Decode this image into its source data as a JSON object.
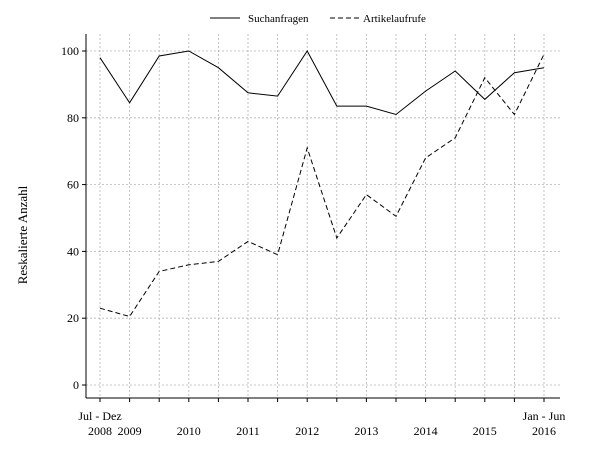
{
  "chart_data": {
    "type": "line",
    "ylabel": "Reskalierte Anzahl",
    "xlabel": "",
    "ylim": [
      0,
      100
    ],
    "yticks": [
      0,
      20,
      40,
      60,
      80,
      100
    ],
    "grid": true,
    "legend_position": "top",
    "x": [
      "2008-H2",
      "2009-H1",
      "2009-H2",
      "2010-H1",
      "2010-H2",
      "2011-H1",
      "2011-H2",
      "2012-H1",
      "2012-H2",
      "2013-H1",
      "2013-H2",
      "2014-H1",
      "2014-H2",
      "2015-H1",
      "2015-H2",
      "2016-H1"
    ],
    "x_tick_labels": [
      {
        "at": "2008-H2",
        "lines": [
          "Jul - Dez",
          "2008"
        ]
      },
      {
        "at": "2009-H1",
        "lines": [
          "",
          "2009"
        ]
      },
      {
        "at": "2010-H1",
        "lines": [
          "",
          "2010"
        ]
      },
      {
        "at": "2011-H1",
        "lines": [
          "",
          "2011"
        ]
      },
      {
        "at": "2012-H1",
        "lines": [
          "",
          "2012"
        ]
      },
      {
        "at": "2013-H1",
        "lines": [
          "",
          "2013"
        ]
      },
      {
        "at": "2014-H1",
        "lines": [
          "",
          "2014"
        ]
      },
      {
        "at": "2015-H1",
        "lines": [
          "",
          "2015"
        ]
      },
      {
        "at": "2016-H1",
        "lines": [
          "Jan - Jun",
          "2016"
        ]
      }
    ],
    "series": [
      {
        "name": "Suchanfragen",
        "style": "solid",
        "values": [
          98,
          84.5,
          98.5,
          100,
          95,
          87.5,
          86.5,
          100,
          83.5,
          83.5,
          81,
          88,
          94,
          85.5,
          93.5,
          95
        ]
      },
      {
        "name": "Artikelaufrufe",
        "style": "dashed",
        "values": [
          23,
          20.5,
          34,
          36,
          37,
          43,
          39,
          71,
          44,
          57,
          50.5,
          68,
          74,
          92,
          81,
          99
        ]
      }
    ]
  }
}
